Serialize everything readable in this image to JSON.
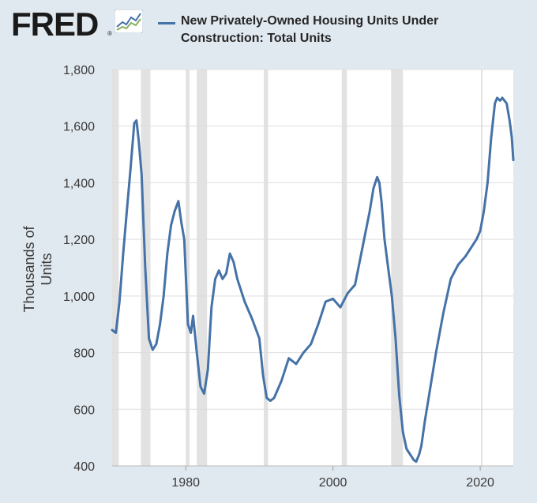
{
  "header": {
    "logo_text": "FRED",
    "logo_mark": "®",
    "logo_icon": "sparkline-icon",
    "legend_label_line1": "New Privately-Owned Housing Units Under",
    "legend_label_line2": "Construction: Total Units"
  },
  "colors": {
    "background": "#e1e9f0",
    "plot_background": "#ffffff",
    "series": "#4572a7",
    "recession_shading": "#e2e2e2",
    "gridline": "#dddddd"
  },
  "chart_data": {
    "type": "line",
    "title": "",
    "xlabel": "",
    "ylabel": "Thousands of Units",
    "xlim": [
      1970,
      2024.5
    ],
    "ylim": [
      400,
      1800
    ],
    "x_ticks": [
      1980,
      2000,
      2020
    ],
    "x_tick_labels": [
      "1980",
      "2000",
      "2020"
    ],
    "y_ticks": [
      400,
      600,
      800,
      1000,
      1200,
      1400,
      1600,
      1800
    ],
    "y_tick_labels": [
      "400",
      "600",
      "800",
      "1,000",
      "1,200",
      "1,400",
      "1,600",
      "1,800"
    ],
    "grid": "horizontal",
    "legend": "top",
    "recessions": [
      [
        1970.0,
        1970.9
      ],
      [
        1973.9,
        1975.2
      ],
      [
        1980.0,
        1980.5
      ],
      [
        1981.5,
        1982.9
      ],
      [
        1990.6,
        1991.2
      ],
      [
        2001.2,
        2001.9
      ],
      [
        2007.9,
        2009.5
      ],
      [
        2020.1,
        2020.3
      ]
    ],
    "series": [
      {
        "x": [
          1970.0,
          1970.5,
          1971.0,
          1971.5,
          1972.0,
          1972.5,
          1973.0,
          1973.3,
          1973.6,
          1974.0,
          1974.5,
          1975.0,
          1975.5,
          1976.0,
          1976.5,
          1977.0,
          1977.5,
          1978.0,
          1978.5,
          1979.0,
          1979.4,
          1979.8,
          1980.3,
          1980.7,
          1981.0,
          1981.5,
          1982.0,
          1982.5,
          1983.0,
          1983.5,
          1984.0,
          1984.5,
          1985.0,
          1985.5,
          1986.0,
          1986.5,
          1987.0,
          1988.0,
          1989.0,
          1990.0,
          1990.5,
          1991.0,
          1991.5,
          1992.0,
          1993.0,
          1994.0,
          1995.0,
          1996.0,
          1997.0,
          1998.0,
          1999.0,
          2000.0,
          2001.0,
          2002.0,
          2003.0,
          2004.0,
          2005.0,
          2005.5,
          2006.0,
          2006.3,
          2006.6,
          2007.0,
          2007.5,
          2008.0,
          2008.5,
          2009.0,
          2009.5,
          2010.0,
          2010.5,
          2011.0,
          2011.3,
          2011.7,
          2012.0,
          2012.5,
          2013.0,
          2014.0,
          2015.0,
          2016.0,
          2017.0,
          2018.0,
          2019.0,
          2019.5,
          2020.0,
          2020.5,
          2021.0,
          2021.5,
          2022.0,
          2022.3,
          2022.7,
          2023.0,
          2023.3,
          2023.6,
          2024.0,
          2024.3,
          2024.5
        ],
        "y": [
          880,
          870,
          980,
          1150,
          1300,
          1450,
          1610,
          1620,
          1550,
          1430,
          1100,
          850,
          810,
          830,
          900,
          1000,
          1150,
          1250,
          1300,
          1335,
          1260,
          1200,
          900,
          870,
          930,
          800,
          680,
          655,
          740,
          960,
          1060,
          1090,
          1060,
          1080,
          1150,
          1120,
          1060,
          980,
          920,
          850,
          720,
          640,
          630,
          640,
          700,
          780,
          760,
          800,
          830,
          900,
          980,
          990,
          960,
          1010,
          1040,
          1170,
          1300,
          1380,
          1420,
          1400,
          1330,
          1200,
          1100,
          1000,
          850,
          650,
          520,
          460,
          440,
          420,
          415,
          440,
          470,
          560,
          640,
          800,
          940,
          1060,
          1110,
          1140,
          1180,
          1200,
          1230,
          1300,
          1400,
          1560,
          1680,
          1700,
          1690,
          1700,
          1690,
          1680,
          1620,
          1560,
          1480
        ]
      }
    ]
  }
}
